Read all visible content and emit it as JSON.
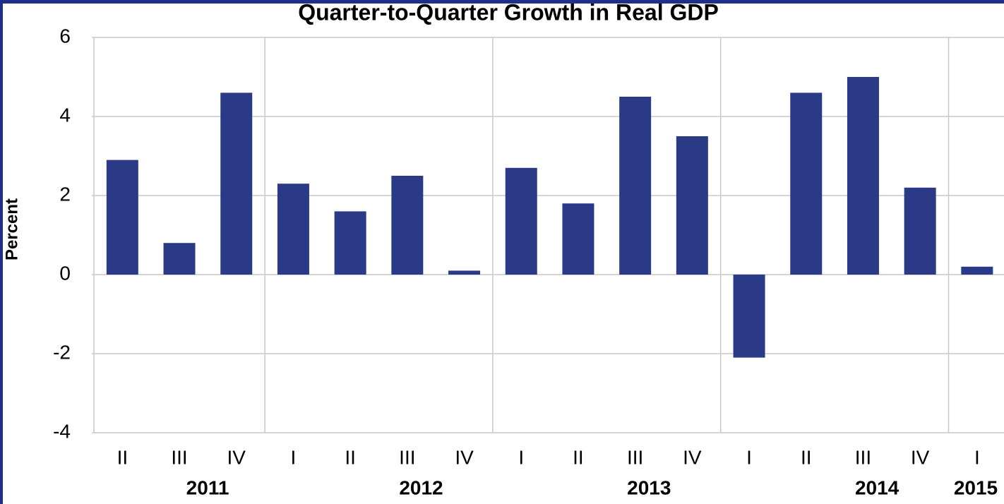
{
  "chart_data": {
    "type": "bar",
    "title": "Quarter-to-Quarter Growth in Real GDP",
    "y_label": "Percent",
    "categories": [
      "II",
      "III",
      "IV",
      "I",
      "II",
      "III",
      "IV",
      "I",
      "II",
      "III",
      "IV",
      "I",
      "II",
      "III",
      "IV",
      "I"
    ],
    "groups": [
      "2011",
      "2012",
      "2013",
      "2014",
      "2015"
    ],
    "values": [
      2.9,
      0.8,
      4.6,
      2.3,
      1.6,
      2.5,
      0.1,
      2.7,
      1.8,
      4.5,
      3.5,
      -2.1,
      4.6,
      5.0,
      2.2,
      0.2
    ],
    "color": "#2b3a87",
    "ylim": [
      -4,
      6
    ],
    "yticks": [
      -4,
      -2,
      0,
      2,
      4,
      6
    ],
    "grid": true
  }
}
